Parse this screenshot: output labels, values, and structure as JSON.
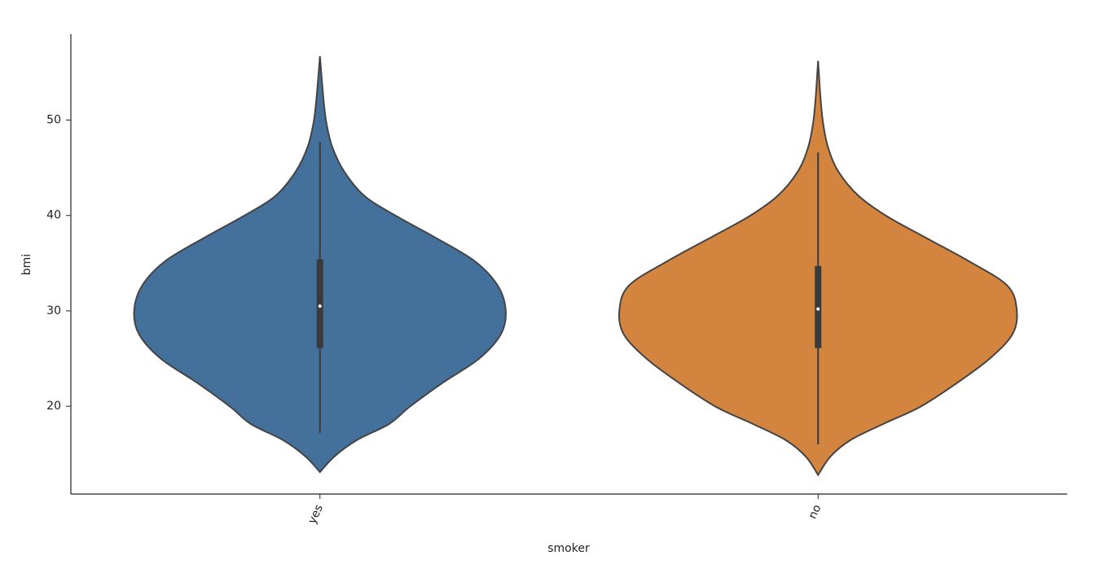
{
  "chart_data": {
    "type": "violin",
    "x_label": "smoker",
    "y_label": "bmi",
    "categories": [
      "yes",
      "no"
    ],
    "ylim": [
      10.8,
      59.0
    ],
    "yticks": [
      20,
      30,
      40,
      50
    ],
    "series": [
      {
        "name": "yes",
        "color": "#44709c",
        "min": 17.2,
        "q1": 26.1,
        "median": 30.5,
        "q3": 35.4,
        "max": 47.7,
        "density_y": [
          13.1,
          14.74,
          16.45,
          18.15,
          19.94,
          22.41,
          24.97,
          27.53,
          30,
          32.64,
          35.2,
          37.76,
          39.89,
          42.02,
          44.58,
          47.14,
          49.69,
          52.25,
          56.7
        ],
        "density": [
          0,
          0.029,
          0.074,
          0.139,
          0.18,
          0.245,
          0.319,
          0.363,
          0.373,
          0.357,
          0.311,
          0.229,
          0.155,
          0.09,
          0.049,
          0.025,
          0.013,
          0.007,
          0
        ]
      },
      {
        "name": "no",
        "color": "#d3843e",
        "min": 16.0,
        "q1": 26.1,
        "median": 30.2,
        "q3": 34.7,
        "max": 46.6,
        "density_y": [
          12.8,
          14.74,
          16.45,
          18.15,
          19.94,
          22.41,
          24.97,
          27.53,
          30,
          32.64,
          35.2,
          37.76,
          39.89,
          42.02,
          44.58,
          47.14,
          49.69,
          52.25,
          56.2
        ],
        "density": [
          0,
          0.025,
          0.065,
          0.131,
          0.205,
          0.278,
          0.344,
          0.39,
          0.399,
          0.38,
          0.303,
          0.213,
          0.139,
          0.082,
          0.041,
          0.02,
          0.01,
          0.005,
          0
        ]
      }
    ]
  }
}
